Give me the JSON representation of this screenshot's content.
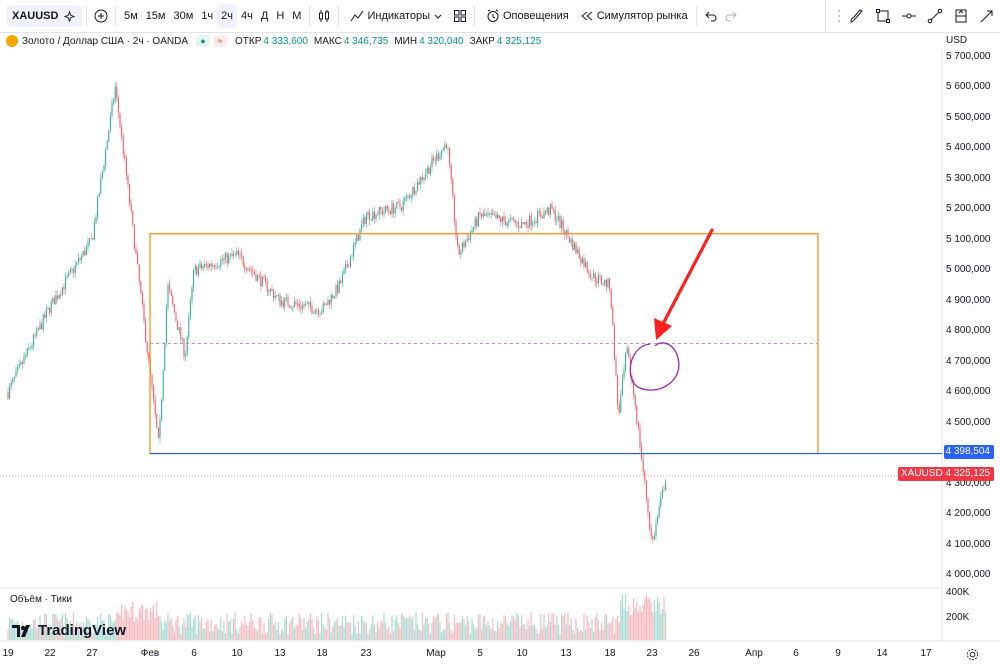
{
  "toolbar": {
    "symbol": "XAUUSD",
    "timeframes": [
      "5м",
      "15м",
      "30м",
      "1ч",
      "2ч",
      "4ч",
      "Д",
      "Н",
      "М"
    ],
    "selected_timeframe": "2ч",
    "indicators_label": "Индикаторы",
    "alerts_label": "Оповещения",
    "replay_label": "Симулятор рынка"
  },
  "legend": {
    "title": "Золото / Доллар США · 2ч · OANDA",
    "open_label": "ОТКР",
    "open_value": "4 333,600",
    "high_label": "МАКС",
    "high_value": "4 346,735",
    "low_label": "МИН",
    "low_value": "4 320,040",
    "close_label": "ЗАКР",
    "close_value": "4 325,125"
  },
  "price_axis": {
    "currency": "USD",
    "ticks": [
      "5 700,000",
      "5 600,000",
      "5 500,000",
      "5 400,000",
      "5 300,000",
      "5 200,000",
      "5 100,000",
      "5 000,000",
      "4 900,000",
      "4 800,000",
      "4 700,000",
      "4 600,000",
      "4 500,000",
      "4 300,000",
      "4 200,000",
      "4 100,000",
      "4 000,000"
    ],
    "level_tag": "4 398,504",
    "last_symbol": "XAUUSD",
    "last_price": "4 325,125"
  },
  "volume": {
    "label": "Объём · Тики",
    "ticks": [
      "400K",
      "200K"
    ]
  },
  "time_axis": {
    "ticks": [
      "19",
      "22",
      "27",
      "Фев",
      "6",
      "10",
      "13",
      "18",
      "23",
      "Мар",
      "5",
      "10",
      "13",
      "18",
      "23",
      "26",
      "Апр",
      "6",
      "9",
      "14",
      "17"
    ]
  },
  "brand": "TradingView",
  "colors": {
    "up": "#089981",
    "down": "#f23645",
    "box": "#f7931a",
    "level_line": "#2962ff",
    "annotation_circle": "#9c27b0",
    "arrow": "#ff1f1f"
  },
  "chart_data": {
    "type": "candlestick",
    "symbol": "XAUUSD",
    "timeframe": "2ч",
    "ylim": [
      4000,
      5700
    ],
    "price_path": [
      {
        "x": "19 Jan",
        "y": 4600
      },
      {
        "x": "22 Jan",
        "y": 4880
      },
      {
        "x": "27 Jan",
        "y": 5100
      },
      {
        "x": "29 Jan",
        "y": 5600
      },
      {
        "x": "30 Jan",
        "y": 5300
      },
      {
        "x": "02 Feb",
        "y": 4420
      },
      {
        "x": "03 Feb",
        "y": 4950
      },
      {
        "x": "05 Feb",
        "y": 4720
      },
      {
        "x": "06 Feb",
        "y": 5000
      },
      {
        "x": "10 Feb",
        "y": 5050
      },
      {
        "x": "13 Feb",
        "y": 4900
      },
      {
        "x": "18 Feb",
        "y": 4870
      },
      {
        "x": "20 Feb",
        "y": 4950
      },
      {
        "x": "23 Feb",
        "y": 5180
      },
      {
        "x": "26 Feb",
        "y": 5210
      },
      {
        "x": "02 Mar",
        "y": 5420
      },
      {
        "x": "03 Mar",
        "y": 5050
      },
      {
        "x": "05 Mar",
        "y": 5180
      },
      {
        "x": "10 Mar",
        "y": 5150
      },
      {
        "x": "12 Mar",
        "y": 5200
      },
      {
        "x": "16 Mar",
        "y": 4980
      },
      {
        "x": "18 Mar",
        "y": 4950
      },
      {
        "x": "19 Mar",
        "y": 4520
      },
      {
        "x": "20 Mar",
        "y": 4740
      },
      {
        "x": "21 Mar",
        "y": 4560
      },
      {
        "x": "23 Mar",
        "y": 4100
      },
      {
        "x": "24 Mar",
        "y": 4325
      }
    ],
    "annotations": {
      "box": {
        "from": "02 Feb",
        "to": "07 Apr",
        "low": 4398.504,
        "high": 5120
      },
      "level": 4398.504,
      "dashed_level": 4760,
      "circle_at": {
        "x": "21 Mar",
        "y": 4670
      }
    }
  }
}
